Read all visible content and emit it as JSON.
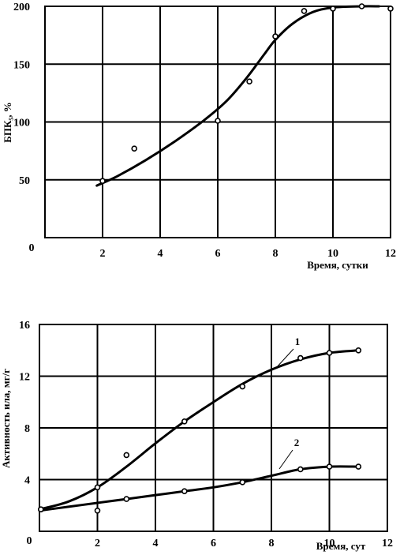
{
  "chart_data": [
    {
      "type": "scatter",
      "ylabel": "БПК₅, %",
      "xlabel": "Время, сутки",
      "xlim": [
        0,
        12
      ],
      "ylim": [
        0,
        200
      ],
      "x_ticks": [
        "0",
        "2",
        "4",
        "6",
        "8",
        "10",
        "12"
      ],
      "y_ticks": [
        "50",
        "100",
        "150",
        "200"
      ],
      "grid": true,
      "series": [
        {
          "points": [
            [
              2.0,
              49
            ],
            [
              3.1,
              77
            ],
            [
              6.0,
              101
            ],
            [
              7.1,
              135
            ],
            [
              8.0,
              174
            ],
            [
              9.0,
              196
            ],
            [
              10.0,
              198
            ],
            [
              11.0,
              200
            ],
            [
              12.0,
              198
            ]
          ],
          "curve": [
            [
              1.8,
              45
            ],
            [
              2.5,
              53
            ],
            [
              3.5,
              67
            ],
            [
              4.5,
              83
            ],
            [
              5.5,
              101
            ],
            [
              6.3,
              118
            ],
            [
              7.0,
              138
            ],
            [
              7.6,
              158
            ],
            [
              8.0,
              171
            ],
            [
              8.6,
              185
            ],
            [
              9.3,
              195
            ],
            [
              10.0,
              199
            ],
            [
              11.0,
              200
            ],
            [
              11.6,
              200
            ]
          ]
        }
      ]
    },
    {
      "type": "scatter",
      "ylabel": "Активность ила, мг/г",
      "xlabel": "Время, сут",
      "xlim": [
        0,
        12
      ],
      "ylim": [
        0,
        16
      ],
      "x_ticks": [
        "0",
        "2",
        "4",
        "6",
        "8",
        "10",
        "12"
      ],
      "y_ticks": [
        "4",
        "8",
        "12",
        "16"
      ],
      "grid": true,
      "series": [
        {
          "label": "1",
          "points": [
            [
              0.05,
              1.7
            ],
            [
              2.0,
              3.4
            ],
            [
              3.0,
              5.9
            ],
            [
              5.0,
              8.5
            ],
            [
              7.0,
              11.2
            ],
            [
              9.0,
              13.4
            ],
            [
              10.0,
              13.8
            ],
            [
              11.0,
              14.0
            ]
          ],
          "curve": [
            [
              0.0,
              1.7
            ],
            [
              1.0,
              2.3
            ],
            [
              2.0,
              3.4
            ],
            [
              3.0,
              5.0
            ],
            [
              4.0,
              6.8
            ],
            [
              5.0,
              8.5
            ],
            [
              6.0,
              10.0
            ],
            [
              7.0,
              11.4
            ],
            [
              8.0,
              12.5
            ],
            [
              9.0,
              13.3
            ],
            [
              10.0,
              13.8
            ],
            [
              11.0,
              14.0
            ]
          ]
        },
        {
          "label": "2",
          "points": [
            [
              0.05,
              1.7
            ],
            [
              2.0,
              1.6
            ],
            [
              3.0,
              2.5
            ],
            [
              5.0,
              3.1
            ],
            [
              7.0,
              3.8
            ],
            [
              9.0,
              4.8
            ],
            [
              10.0,
              5.0
            ],
            [
              11.0,
              5.0
            ]
          ],
          "curve": [
            [
              0.0,
              1.6
            ],
            [
              1.0,
              1.9
            ],
            [
              2.0,
              2.2
            ],
            [
              3.0,
              2.5
            ],
            [
              4.0,
              2.8
            ],
            [
              5.0,
              3.1
            ],
            [
              6.0,
              3.4
            ],
            [
              7.0,
              3.8
            ],
            [
              8.0,
              4.3
            ],
            [
              9.0,
              4.8
            ],
            [
              10.0,
              5.0
            ],
            [
              11.0,
              5.0
            ]
          ]
        }
      ]
    }
  ]
}
